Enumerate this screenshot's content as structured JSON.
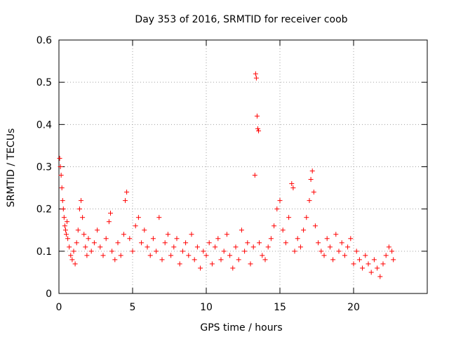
{
  "chart_data": {
    "type": "scatter",
    "title": "Day 353 of 2016, SRMTID for receiver coob",
    "xlabel": "GPS time / hours",
    "ylabel": "SRMTID / TECUs",
    "xlim": [
      0,
      25
    ],
    "ylim": [
      0,
      0.6
    ],
    "xticks": [
      0,
      5,
      10,
      15,
      20
    ],
    "yticks": [
      0,
      0.1,
      0.2,
      0.3,
      0.4,
      0.5,
      0.6
    ],
    "ytick_labels": [
      "0",
      "0.1",
      "0.2",
      "0.3",
      "0.4",
      "0.5",
      "0.6"
    ],
    "xtick_labels": [
      "0",
      "5",
      "10",
      "15",
      "20"
    ],
    "grid": true,
    "marker": "+",
    "series": [
      {
        "name": "SRMTID",
        "color": "#ff0000",
        "points": [
          [
            0.05,
            0.32
          ],
          [
            0.1,
            0.3
          ],
          [
            0.15,
            0.28
          ],
          [
            0.2,
            0.25
          ],
          [
            0.25,
            0.22
          ],
          [
            0.3,
            0.2
          ],
          [
            0.35,
            0.18
          ],
          [
            0.4,
            0.16
          ],
          [
            0.45,
            0.15
          ],
          [
            0.5,
            0.14
          ],
          [
            0.55,
            0.17
          ],
          [
            0.6,
            0.13
          ],
          [
            0.7,
            0.11
          ],
          [
            0.8,
            0.09
          ],
          [
            0.9,
            0.08
          ],
          [
            1.0,
            0.1
          ],
          [
            1.1,
            0.07
          ],
          [
            1.2,
            0.12
          ],
          [
            1.3,
            0.15
          ],
          [
            1.4,
            0.2
          ],
          [
            1.5,
            0.22
          ],
          [
            1.6,
            0.18
          ],
          [
            1.7,
            0.14
          ],
          [
            1.8,
            0.11
          ],
          [
            1.9,
            0.09
          ],
          [
            2.0,
            0.13
          ],
          [
            2.2,
            0.1
          ],
          [
            2.4,
            0.12
          ],
          [
            2.6,
            0.15
          ],
          [
            2.8,
            0.11
          ],
          [
            3.0,
            0.09
          ],
          [
            3.2,
            0.13
          ],
          [
            3.4,
            0.17
          ],
          [
            3.5,
            0.19
          ],
          [
            3.6,
            0.1
          ],
          [
            3.8,
            0.08
          ],
          [
            4.0,
            0.12
          ],
          [
            4.2,
            0.09
          ],
          [
            4.4,
            0.14
          ],
          [
            4.5,
            0.22
          ],
          [
            4.6,
            0.24
          ],
          [
            4.8,
            0.13
          ],
          [
            5.0,
            0.1
          ],
          [
            5.2,
            0.16
          ],
          [
            5.4,
            0.18
          ],
          [
            5.6,
            0.12
          ],
          [
            5.8,
            0.15
          ],
          [
            6.0,
            0.11
          ],
          [
            6.2,
            0.09
          ],
          [
            6.4,
            0.13
          ],
          [
            6.6,
            0.1
          ],
          [
            6.8,
            0.18
          ],
          [
            7.0,
            0.08
          ],
          [
            7.2,
            0.12
          ],
          [
            7.4,
            0.14
          ],
          [
            7.6,
            0.09
          ],
          [
            7.8,
            0.11
          ],
          [
            8.0,
            0.13
          ],
          [
            8.2,
            0.07
          ],
          [
            8.4,
            0.1
          ],
          [
            8.6,
            0.12
          ],
          [
            8.8,
            0.09
          ],
          [
            9.0,
            0.14
          ],
          [
            9.2,
            0.08
          ],
          [
            9.4,
            0.11
          ],
          [
            9.6,
            0.06
          ],
          [
            9.8,
            0.1
          ],
          [
            10.0,
            0.09
          ],
          [
            10.2,
            0.12
          ],
          [
            10.4,
            0.07
          ],
          [
            10.6,
            0.11
          ],
          [
            10.8,
            0.13
          ],
          [
            11.0,
            0.08
          ],
          [
            11.2,
            0.1
          ],
          [
            11.4,
            0.14
          ],
          [
            11.6,
            0.09
          ],
          [
            11.8,
            0.06
          ],
          [
            12.0,
            0.11
          ],
          [
            12.2,
            0.08
          ],
          [
            12.4,
            0.15
          ],
          [
            12.6,
            0.1
          ],
          [
            12.8,
            0.12
          ],
          [
            13.0,
            0.07
          ],
          [
            13.2,
            0.11
          ],
          [
            13.3,
            0.28
          ],
          [
            13.35,
            0.52
          ],
          [
            13.4,
            0.51
          ],
          [
            13.45,
            0.42
          ],
          [
            13.5,
            0.39
          ],
          [
            13.55,
            0.385
          ],
          [
            13.6,
            0.12
          ],
          [
            13.8,
            0.09
          ],
          [
            14.0,
            0.08
          ],
          [
            14.2,
            0.11
          ],
          [
            14.4,
            0.13
          ],
          [
            14.6,
            0.16
          ],
          [
            14.8,
            0.2
          ],
          [
            15.0,
            0.22
          ],
          [
            15.2,
            0.15
          ],
          [
            15.4,
            0.12
          ],
          [
            15.6,
            0.18
          ],
          [
            15.8,
            0.26
          ],
          [
            15.9,
            0.25
          ],
          [
            16.0,
            0.1
          ],
          [
            16.2,
            0.13
          ],
          [
            16.4,
            0.11
          ],
          [
            16.6,
            0.15
          ],
          [
            16.8,
            0.18
          ],
          [
            17.0,
            0.22
          ],
          [
            17.1,
            0.27
          ],
          [
            17.2,
            0.29
          ],
          [
            17.3,
            0.24
          ],
          [
            17.4,
            0.16
          ],
          [
            17.6,
            0.12
          ],
          [
            17.8,
            0.1
          ],
          [
            18.0,
            0.09
          ],
          [
            18.2,
            0.13
          ],
          [
            18.4,
            0.11
          ],
          [
            18.6,
            0.08
          ],
          [
            18.8,
            0.14
          ],
          [
            19.0,
            0.1
          ],
          [
            19.2,
            0.12
          ],
          [
            19.4,
            0.09
          ],
          [
            19.6,
            0.11
          ],
          [
            19.8,
            0.13
          ],
          [
            20.0,
            0.07
          ],
          [
            20.2,
            0.1
          ],
          [
            20.4,
            0.08
          ],
          [
            20.6,
            0.06
          ],
          [
            20.8,
            0.09
          ],
          [
            21.0,
            0.07
          ],
          [
            21.2,
            0.05
          ],
          [
            21.4,
            0.08
          ],
          [
            21.6,
            0.06
          ],
          [
            21.8,
            0.04
          ],
          [
            22.0,
            0.07
          ],
          [
            22.2,
            0.09
          ],
          [
            22.4,
            0.11
          ],
          [
            22.6,
            0.1
          ],
          [
            22.7,
            0.08
          ]
        ]
      }
    ]
  }
}
